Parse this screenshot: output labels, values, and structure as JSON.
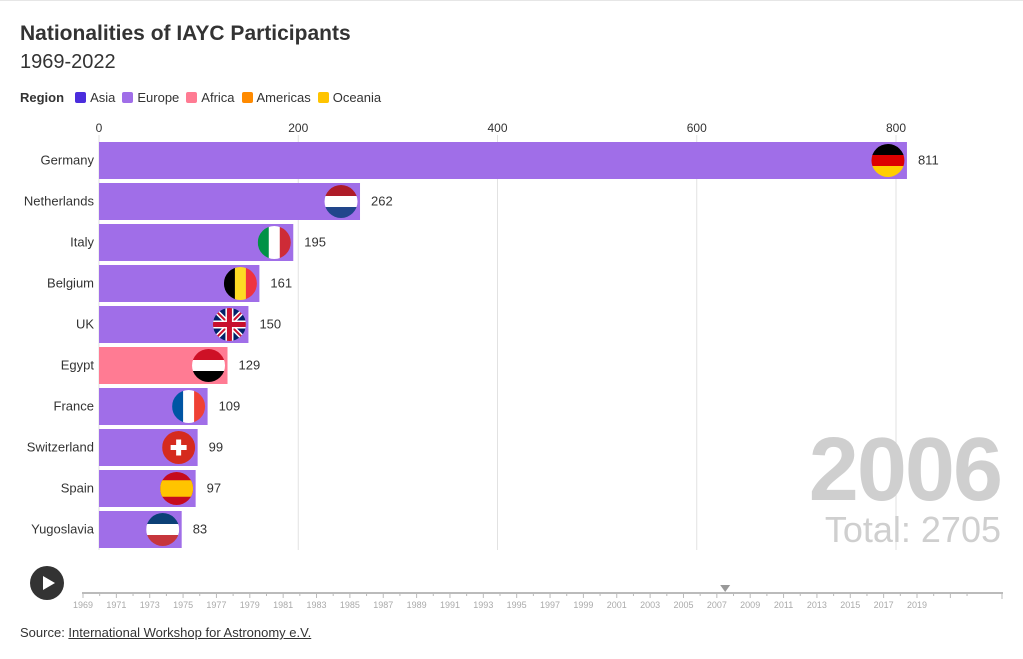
{
  "title": "Nationalities of IAYC Participants",
  "subtitle": "1969-2022",
  "legend": {
    "label": "Region",
    "items": [
      {
        "name": "Asia",
        "color": "#4b2ddd"
      },
      {
        "name": "Europe",
        "color": "#a06ee8"
      },
      {
        "name": "Africa",
        "color": "#ff7b93"
      },
      {
        "name": "Americas",
        "color": "#ff8a00"
      },
      {
        "name": "Oceania",
        "color": "#ffc400"
      }
    ]
  },
  "chart_data": {
    "type": "bar",
    "orientation": "horizontal",
    "title": "Nationalities of IAYC Participants",
    "categories": [
      "Germany",
      "Netherlands",
      "Italy",
      "Belgium",
      "UK",
      "Egypt",
      "France",
      "Switzerland",
      "Spain",
      "Yugoslavia"
    ],
    "values": [
      811,
      262,
      195,
      161,
      150,
      129,
      109,
      99,
      97,
      83
    ],
    "regions": [
      "Europe",
      "Europe",
      "Europe",
      "Europe",
      "Europe",
      "Africa",
      "Europe",
      "Europe",
      "Europe",
      "Europe"
    ],
    "xticks": [
      0,
      200,
      400,
      600,
      800
    ],
    "xlim": [
      0,
      900
    ],
    "grid": true
  },
  "year": "2006",
  "total": "Total: 2705",
  "timeline": {
    "years": [
      "1969",
      "1971",
      "1973",
      "1975",
      "1977",
      "1979",
      "1981",
      "1983",
      "1985",
      "1987",
      "1989",
      "1991",
      "1993",
      "1995",
      "1997",
      "1999",
      "2001",
      "2003",
      "2005",
      "2007",
      "2009",
      "2011",
      "2013",
      "2015",
      "2017",
      "2019"
    ],
    "position_year": 2007.5
  },
  "source": {
    "prefix": "Source: ",
    "link": "International Workshop for Astronomy e.V."
  }
}
